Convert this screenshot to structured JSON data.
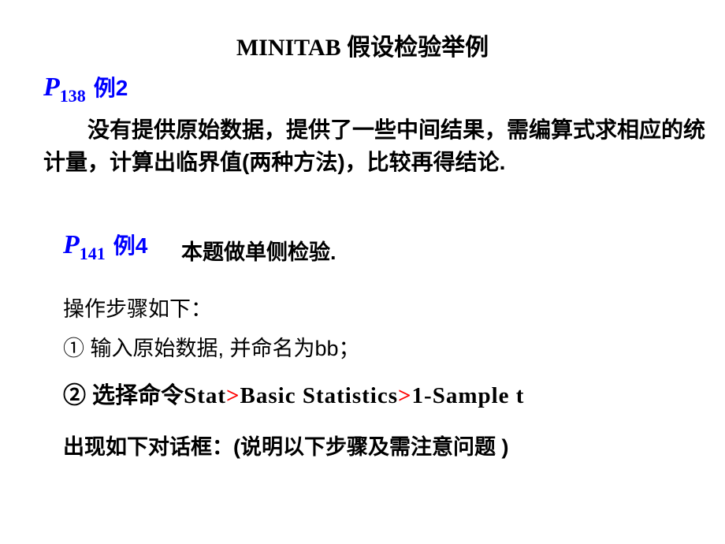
{
  "title": "MINITAB 假设检验举例",
  "ref1": {
    "P": "P",
    "sub": "138",
    "ex": "例2"
  },
  "para1_indent": "",
  "para1": "没有提供原始数据，提供了一些中间结果，需编算式求相应的统计量，计算出临界值(两种方法)，比较再得结论.",
  "ref2": {
    "P": "P",
    "sub": "141",
    "ex": "例4"
  },
  "side_text": "本题做单侧检验.",
  "steps_intro": "操作步骤如下：",
  "step1": "①  输入原始数据, 并命名为bb；",
  "step2_prefix": "②  选择命令",
  "step2_cmd1": "Stat",
  "step2_gt1": ">",
  "step2_cmd2": "Basic  Statistics",
  "step2_gt2": ">",
  "step2_cmd3": "1-Sample  t",
  "dialog_note": "出现如下对话框：(说明以下步骤及需注意问题 )"
}
